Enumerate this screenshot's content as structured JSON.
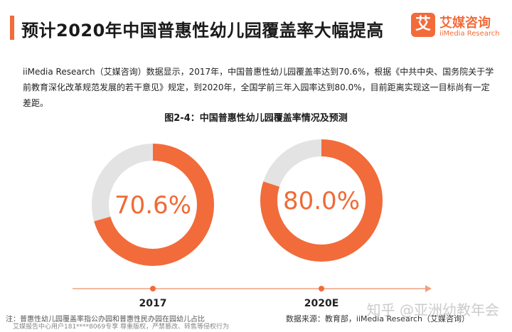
{
  "header": {
    "title": "预计2020年中国普惠性幼儿园覆盖率大幅提高"
  },
  "logo": {
    "mark": "艾",
    "name_cn": "艾媒咨询",
    "name_en": "iiMedia Research"
  },
  "description": "iiMedia Research（艾媒咨询）数据显示，2017年，中国普惠性幼儿园覆盖率达到70.6%，根据《中共中央、国务院关于学前教育深化改革规范发展的若干意见》规定，到2020年，全国学前三年入园率达到80.0%，目前距离实现这一目标尚有一定差距。",
  "chart_data": {
    "type": "donut",
    "title": "图2-4：中国普惠性幼儿园覆盖率情况及预测",
    "unit": "%",
    "categories": [
      "2017",
      "2020E"
    ],
    "values": [
      70.6,
      80.0
    ],
    "value_labels": [
      "70.6%",
      "80.0%"
    ]
  },
  "footer": {
    "note": "注：普惠性幼儿园覆盖率指公办园和普惠性民办园在园幼儿占比",
    "subnote": "艾媒报告中心用户181****8069专享 尊重版权，严禁篡改、转售等侵权行为",
    "source": "数据来源：教育部，iiMedia Research（艾媒咨询）",
    "watermark": "知乎 @亚洲幼教年会"
  },
  "colors": {
    "accent": "#f26b3a",
    "remainder": "#e3e3e3",
    "timeline": "#f0a080",
    "label": "#ef6a36"
  }
}
